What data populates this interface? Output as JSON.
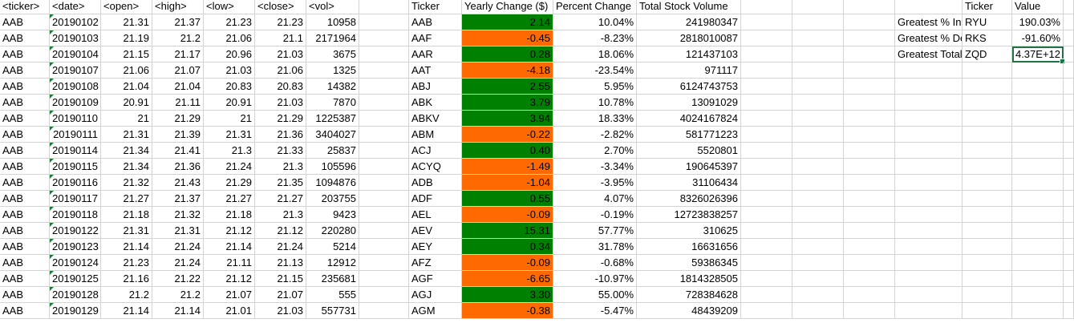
{
  "headers": [
    "<ticker>",
    "<date>",
    "<open>",
    "<high>",
    "<low>",
    "<close>",
    "<vol>",
    "",
    "Ticker",
    "Yearly Change ($)",
    "Percent Change",
    "Total Stock Volume",
    "",
    "",
    "",
    "",
    "Ticker",
    "Value",
    ""
  ],
  "raw_rows": [
    [
      "AAB",
      "20190102",
      "21.31",
      "21.37",
      "21.23",
      "21.23",
      "10958"
    ],
    [
      "AAB",
      "20190103",
      "21.19",
      "21.2",
      "21.06",
      "21.1",
      "2171964"
    ],
    [
      "AAB",
      "20190104",
      "21.15",
      "21.17",
      "20.96",
      "21.03",
      "3675"
    ],
    [
      "AAB",
      "20190107",
      "21.06",
      "21.07",
      "21.03",
      "21.06",
      "1325"
    ],
    [
      "AAB",
      "20190108",
      "21.04",
      "21.04",
      "20.83",
      "20.83",
      "14382"
    ],
    [
      "AAB",
      "20190109",
      "20.91",
      "21.11",
      "20.91",
      "21.03",
      "7870"
    ],
    [
      "AAB",
      "20190110",
      "21",
      "21.29",
      "21",
      "21.29",
      "1225387"
    ],
    [
      "AAB",
      "20190111",
      "21.31",
      "21.39",
      "21.31",
      "21.36",
      "3404027"
    ],
    [
      "AAB",
      "20190114",
      "21.34",
      "21.41",
      "21.3",
      "21.33",
      "25837"
    ],
    [
      "AAB",
      "20190115",
      "21.34",
      "21.36",
      "21.24",
      "21.3",
      "105596"
    ],
    [
      "AAB",
      "20190116",
      "21.32",
      "21.43",
      "21.29",
      "21.35",
      "1094876"
    ],
    [
      "AAB",
      "20190117",
      "21.27",
      "21.37",
      "21.27",
      "21.27",
      "203755"
    ],
    [
      "AAB",
      "20190118",
      "21.18",
      "21.32",
      "21.18",
      "21.3",
      "9423"
    ],
    [
      "AAB",
      "20190122",
      "21.31",
      "21.31",
      "21.12",
      "21.12",
      "220280"
    ],
    [
      "AAB",
      "20190123",
      "21.14",
      "21.24",
      "21.14",
      "21.24",
      "5214"
    ],
    [
      "AAB",
      "20190124",
      "21.23",
      "21.24",
      "21.11",
      "21.13",
      "12912"
    ],
    [
      "AAB",
      "20190125",
      "21.16",
      "21.22",
      "21.12",
      "21.15",
      "235681"
    ],
    [
      "AAB",
      "20190128",
      "21.2",
      "21.2",
      "21.07",
      "21.07",
      "555"
    ],
    [
      "AAB",
      "20190129",
      "21.14",
      "21.14",
      "21.01",
      "21.03",
      "557731"
    ]
  ],
  "summary_rows": [
    {
      "ticker": "AAB",
      "change": "2.14",
      "pct": "10.04%",
      "vol": "241980347",
      "status": "positive"
    },
    {
      "ticker": "AAF",
      "change": "-0.45",
      "pct": "-8.23%",
      "vol": "2818010087",
      "status": "negative"
    },
    {
      "ticker": "AAR",
      "change": "0.28",
      "pct": "18.06%",
      "vol": "121437103",
      "status": "positive"
    },
    {
      "ticker": "AAT",
      "change": "-4.18",
      "pct": "-23.54%",
      "vol": "971117",
      "status": "negative"
    },
    {
      "ticker": "ABJ",
      "change": "2.55",
      "pct": "5.95%",
      "vol": "6124743753",
      "status": "positive"
    },
    {
      "ticker": "ABK",
      "change": "3.79",
      "pct": "10.78%",
      "vol": "13091029",
      "status": "positive"
    },
    {
      "ticker": "ABKV",
      "change": "3.94",
      "pct": "18.33%",
      "vol": "4024167824",
      "status": "positive"
    },
    {
      "ticker": "ABM",
      "change": "-0.22",
      "pct": "-2.82%",
      "vol": "581771223",
      "status": "negative"
    },
    {
      "ticker": "ACJ",
      "change": "0.40",
      "pct": "2.70%",
      "vol": "5520801",
      "status": "positive"
    },
    {
      "ticker": "ACYQ",
      "change": "-1.49",
      "pct": "-3.34%",
      "vol": "190645397",
      "status": "negative"
    },
    {
      "ticker": "ADB",
      "change": "-1.04",
      "pct": "-3.95%",
      "vol": "31106434",
      "status": "negative"
    },
    {
      "ticker": "ADF",
      "change": "0.55",
      "pct": "4.07%",
      "vol": "8326026396",
      "status": "positive"
    },
    {
      "ticker": "AEL",
      "change": "-0.09",
      "pct": "-0.19%",
      "vol": "12723838257",
      "status": "negative"
    },
    {
      "ticker": "AEV",
      "change": "15.31",
      "pct": "57.77%",
      "vol": "310625",
      "status": "positive"
    },
    {
      "ticker": "AEY",
      "change": "0.34",
      "pct": "31.78%",
      "vol": "16631656",
      "status": "positive"
    },
    {
      "ticker": "AFZ",
      "change": "-0.09",
      "pct": "-0.68%",
      "vol": "59386345",
      "status": "negative"
    },
    {
      "ticker": "AGF",
      "change": "-6.65",
      "pct": "-10.97%",
      "vol": "1814328505",
      "status": "negative"
    },
    {
      "ticker": "AGJ",
      "change": "3.30",
      "pct": "55.00%",
      "vol": "728384628",
      "status": "positive"
    },
    {
      "ticker": "AGM",
      "change": "-0.38",
      "pct": "-5.47%",
      "vol": "48439209",
      "status": "negative"
    }
  ],
  "greatest": [
    {
      "label": "Greatest % Increase",
      "ticker": "RYU",
      "value": "190.03%"
    },
    {
      "label": "Greatest % Decrease",
      "ticker": "RKS",
      "value": "-91.60%"
    },
    {
      "label": "Greatest Total Volume",
      "ticker": "ZQD",
      "value": "4.37E+12"
    }
  ],
  "colors": {
    "positive": "#008000",
    "negative": "#ff6a00",
    "selection": "#217346",
    "grid": "#d4d4d4"
  }
}
